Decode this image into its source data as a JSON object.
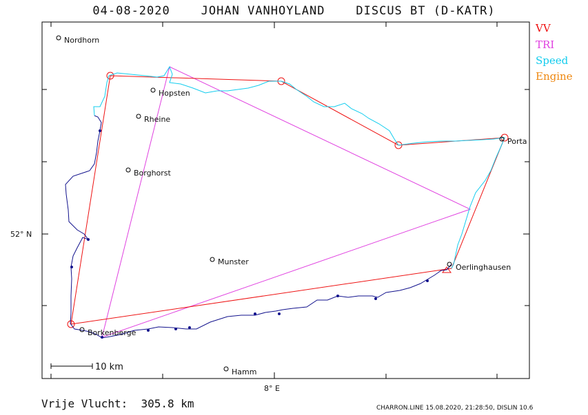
{
  "title": "04-08-2020    JOHAN VANHOYLAND    DISCUS BT (D-KATR)",
  "legend": [
    {
      "label": "VV",
      "color": "#ee1111"
    },
    {
      "label": "TRI",
      "color": "#e040e0"
    },
    {
      "label": "Speed",
      "color": "#11ccee"
    },
    {
      "label": "Engine",
      "color": "#ee8811"
    }
  ],
  "places": [
    {
      "name": "Nordhorn"
    },
    {
      "name": "Hopsten"
    },
    {
      "name": "Rheine"
    },
    {
      "name": "Borghorst"
    },
    {
      "name": "Munster"
    },
    {
      "name": "Porta"
    },
    {
      "name": "Oerlinghausen"
    },
    {
      "name": "Borkenberge"
    },
    {
      "name": "Hamm"
    }
  ],
  "axis": {
    "lat_label": "52° N",
    "lon_label": "8° E"
  },
  "scale_bar": {
    "label": "10  km"
  },
  "distance": "Vrije Vlucht:  305.8 km",
  "footer": "CHARRON.LINE 15.08.2020, 21:28:50, DISLIN 10.6",
  "colors": {
    "track": "#11118c",
    "speed": "#11ccee",
    "vv": "#ee1111",
    "tri": "#e040e0",
    "frame": "#000000"
  }
}
